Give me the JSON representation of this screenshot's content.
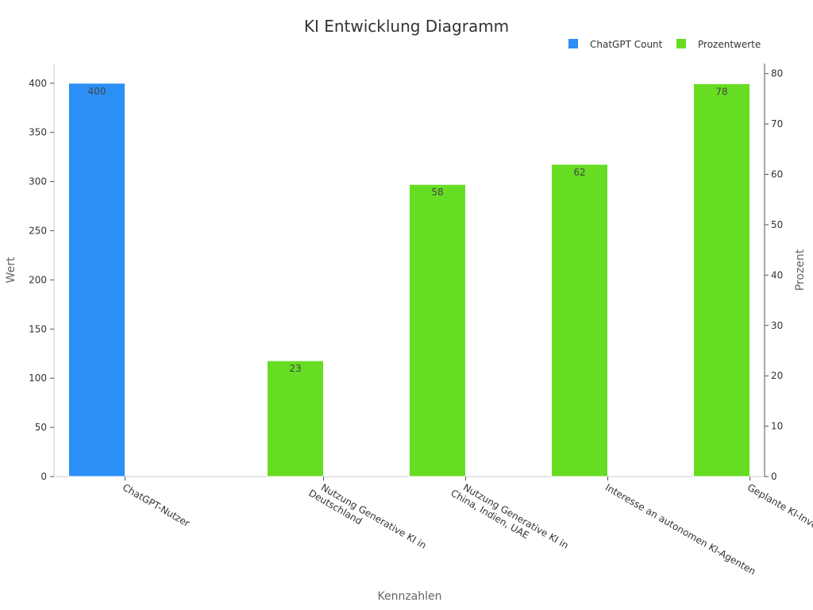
{
  "chart_data": {
    "type": "bar",
    "title": "KI Entwicklung Diagramm",
    "xlabel": "Kennzahlen",
    "ylabel": "Wert",
    "y2label": "Prozent",
    "categories": [
      "ChatGPT-Nutzer",
      "Nutzung Generative KI in Deutschland",
      "Nutzung Generative KI in China, Indien, UAE",
      "Interesse an autonomen KI-Agenten",
      "Geplante KI-Investitionen"
    ],
    "category_lines": [
      [
        "ChatGPT-Nutzer"
      ],
      [
        "Nutzung Generative KI in",
        "Deutschland"
      ],
      [
        "Nutzung Generative KI in",
        "China, Indien, UAE"
      ],
      [
        "Interesse an autonomen KI-Agenten"
      ],
      [
        "Geplante KI-Investitionen"
      ]
    ],
    "series": [
      {
        "name": "ChatGPT Count",
        "axis": "left",
        "color": "#2b8ff5",
        "values": [
          400,
          null,
          null,
          null,
          null
        ]
      },
      {
        "name": "Prozentwerte",
        "axis": "right",
        "color": "#66dd22",
        "values": [
          null,
          23,
          58,
          62,
          78
        ]
      }
    ],
    "ylim": [
      0,
      420
    ],
    "y2lim": [
      0,
      82
    ],
    "yticks": [
      0,
      50,
      100,
      150,
      200,
      250,
      300,
      350,
      400
    ],
    "y2ticks": [
      0,
      10,
      20,
      30,
      40,
      50,
      60,
      70,
      80
    ],
    "grid": false,
    "legend_position": "top-right"
  }
}
